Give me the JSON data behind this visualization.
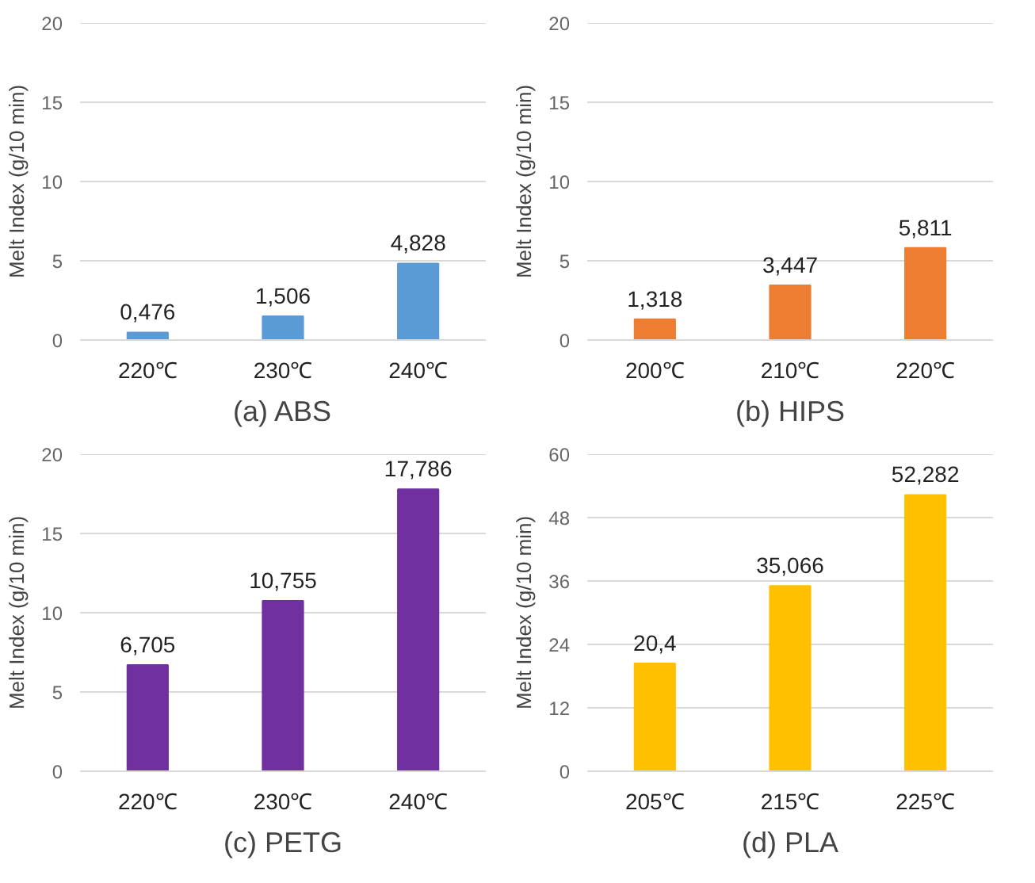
{
  "chart_data": [
    {
      "type": "bar",
      "xlabel": "(a) ABS",
      "ylabel": "Melt Index (g/10 min)",
      "categories": [
        "220℃",
        "230℃",
        "240℃"
      ],
      "values": [
        0.476,
        1.506,
        4.828
      ],
      "value_labels": [
        "0,476",
        "1,506",
        "4,828"
      ],
      "color": "#5b9bd5",
      "ylim": [
        0,
        20
      ],
      "yticks": [
        0,
        5,
        10,
        15,
        20
      ],
      "grid": "y"
    },
    {
      "type": "bar",
      "xlabel": "(b) HIPS",
      "ylabel": "Melt Index (g/10 min)",
      "categories": [
        "200℃",
        "210℃",
        "220℃"
      ],
      "values": [
        1.318,
        3.447,
        5.811
      ],
      "value_labels": [
        "1,318",
        "3,447",
        "5,811"
      ],
      "color": "#ed7d31",
      "ylim": [
        0,
        20
      ],
      "yticks": [
        0,
        5,
        10,
        15,
        20
      ],
      "grid": "y"
    },
    {
      "type": "bar",
      "xlabel": "(c) PETG",
      "ylabel": "Melt Index (g/10 min)",
      "categories": [
        "220℃",
        "230℃",
        "240℃"
      ],
      "values": [
        6.705,
        10.755,
        17.786
      ],
      "value_labels": [
        "6,705",
        "10,755",
        "17,786"
      ],
      "color": "#7030a0",
      "ylim": [
        0,
        20
      ],
      "yticks": [
        0,
        5,
        10,
        15,
        20
      ],
      "grid": "y"
    },
    {
      "type": "bar",
      "xlabel": "(d) PLA",
      "ylabel": "Melt Index (g/10 min)",
      "categories": [
        "205℃",
        "215℃",
        "225℃"
      ],
      "values": [
        20.4,
        35.066,
        52.282
      ],
      "value_labels": [
        "20,4",
        "35,066",
        "52,282"
      ],
      "color": "#ffc000",
      "ylim": [
        0,
        60
      ],
      "yticks": [
        0,
        12,
        24,
        36,
        48,
        60
      ],
      "grid": "y"
    }
  ]
}
